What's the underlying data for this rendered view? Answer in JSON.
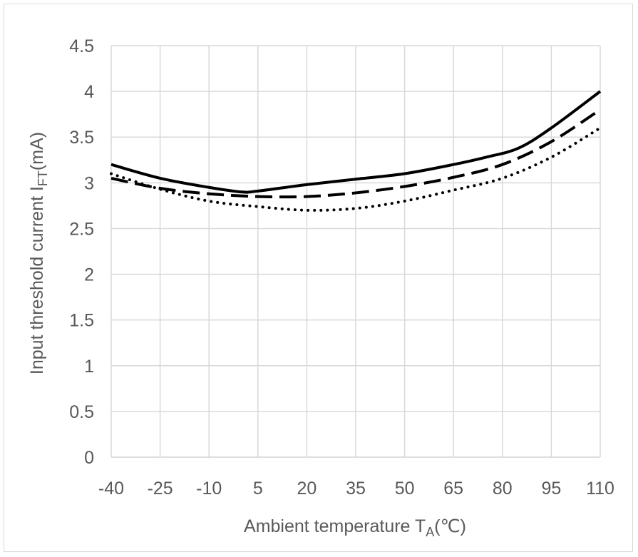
{
  "chart_data": {
    "type": "line",
    "title": "",
    "xlabel": "Ambient temperature T",
    "xlabel_sub": "A",
    "xlabel_suffix": "(℃)",
    "ylabel": "Input threshold current I",
    "ylabel_sub": "FT",
    "ylabel_suffix": "(mA)",
    "x_categories": [
      "-40",
      "-25",
      "-10",
      "5",
      "20",
      "35",
      "50",
      "65",
      "80",
      "95",
      "110"
    ],
    "xlim": [
      -40,
      110
    ],
    "ylim": [
      0,
      4.5
    ],
    "y_ticks": [
      "0",
      "0.5",
      "1",
      "1.5",
      "2",
      "2.5",
      "3",
      "3.5",
      "4",
      "4.5"
    ],
    "grid": true,
    "legend": "none",
    "series": [
      {
        "name": "solid",
        "style": "solid",
        "color": "#000000",
        "x": [
          -40,
          -25,
          -10,
          0,
          5,
          20,
          35,
          50,
          65,
          75,
          85,
          95,
          110
        ],
        "y": [
          3.2,
          3.05,
          2.95,
          2.9,
          2.91,
          2.98,
          3.04,
          3.1,
          3.2,
          3.28,
          3.38,
          3.6,
          4.0
        ]
      },
      {
        "name": "dashed",
        "style": "dashed",
        "color": "#000000",
        "x": [
          -40,
          -25,
          -10,
          5,
          20,
          35,
          50,
          65,
          80,
          95,
          110
        ],
        "y": [
          3.05,
          2.94,
          2.88,
          2.85,
          2.85,
          2.89,
          2.96,
          3.06,
          3.2,
          3.45,
          3.8
        ]
      },
      {
        "name": "dotted",
        "style": "dotted",
        "color": "#000000",
        "x": [
          -40,
          -25,
          -10,
          5,
          20,
          35,
          50,
          65,
          80,
          95,
          110
        ],
        "y": [
          3.1,
          2.93,
          2.8,
          2.74,
          2.7,
          2.72,
          2.8,
          2.92,
          3.05,
          3.28,
          3.6
        ]
      }
    ]
  }
}
